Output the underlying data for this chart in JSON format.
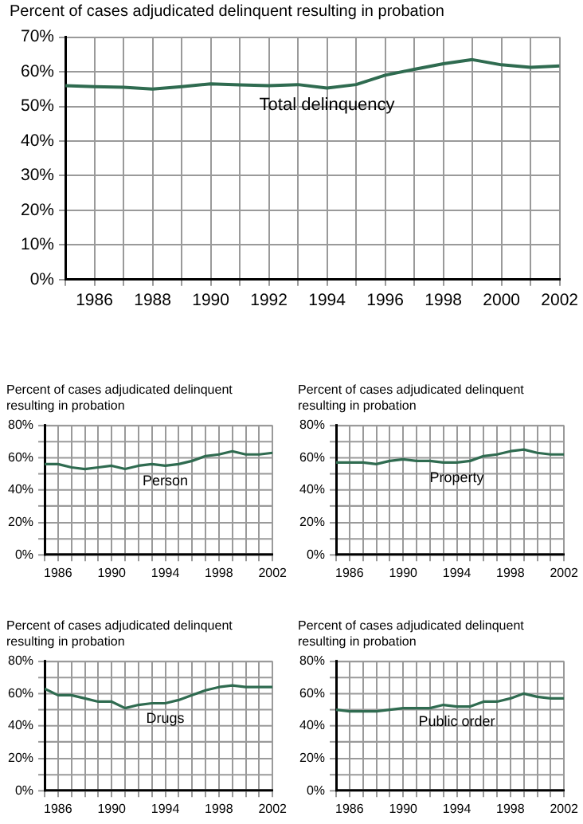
{
  "chart_data": [
    {
      "type": "line",
      "title": "Percent of cases adjudicated delinquent resulting in probation",
      "x": [
        1985,
        1986,
        1987,
        1988,
        1989,
        1990,
        1991,
        1992,
        1993,
        1994,
        1995,
        1996,
        1997,
        1998,
        1999,
        2000,
        2001,
        2002
      ],
      "series": [
        {
          "name": "Total delinquency",
          "color": "#2f6b50",
          "values": [
            56,
            55.7,
            55.5,
            55,
            55.7,
            56.5,
            56.2,
            56,
            56.3,
            55.3,
            56.3,
            59,
            60.7,
            62.3,
            63.5,
            62,
            61.3,
            61.7
          ]
        }
      ],
      "xlim": [
        1985,
        2002
      ],
      "xticks": [
        {
          "value": 1985,
          "label": null
        },
        1986,
        {
          "value": 1987,
          "label": null
        },
        1988,
        {
          "value": 1989,
          "label": null
        },
        1990,
        {
          "value": 1991,
          "label": null
        },
        1992,
        {
          "value": 1993,
          "label": null
        },
        1994,
        {
          "value": 1995,
          "label": null
        },
        1996,
        {
          "value": 1997,
          "label": null
        },
        1998,
        {
          "value": 1999,
          "label": null
        },
        2000,
        {
          "value": 2001,
          "label": null
        },
        2002
      ],
      "ylim": [
        0,
        70
      ],
      "yticks": [
        {
          "value": 0,
          "label": "0%"
        },
        {
          "value": 10,
          "label": "10%"
        },
        {
          "value": 20,
          "label": "20%"
        },
        {
          "value": 30,
          "label": "30%"
        },
        {
          "value": 40,
          "label": "40%"
        },
        {
          "value": 50,
          "label": "50%"
        },
        {
          "value": 60,
          "label": "60%"
        },
        {
          "value": 70,
          "label": "70%"
        }
      ],
      "grid": true,
      "marker": "none",
      "line_style": "solid"
    },
    {
      "type": "line",
      "title": "Percent of cases adjudicated delinquent resulting in probation",
      "x": [
        1985,
        1986,
        1987,
        1988,
        1989,
        1990,
        1991,
        1992,
        1993,
        1994,
        1995,
        1996,
        1997,
        1998,
        1999,
        2000,
        2001,
        2002
      ],
      "series": [
        {
          "name": "Person",
          "color": "#2f6b50",
          "values": [
            56,
            56,
            54,
            53,
            54,
            55,
            53,
            55,
            56,
            55,
            56,
            58,
            61,
            62,
            64,
            62,
            62,
            63
          ]
        }
      ],
      "xlim": [
        1985,
        2002
      ],
      "xticks": [
        {
          "value": 1985,
          "label": null
        },
        1986,
        {
          "value": 1987,
          "label": null
        },
        {
          "value": 1988,
          "label": null
        },
        {
          "value": 1989,
          "label": null
        },
        1990,
        {
          "value": 1991,
          "label": null
        },
        {
          "value": 1992,
          "label": null
        },
        {
          "value": 1993,
          "label": null
        },
        1994,
        {
          "value": 1995,
          "label": null
        },
        {
          "value": 1996,
          "label": null
        },
        {
          "value": 1997,
          "label": null
        },
        1998,
        {
          "value": 1999,
          "label": null
        },
        {
          "value": 2000,
          "label": null
        },
        {
          "value": 2001,
          "label": null
        },
        2002
      ],
      "ylim": [
        0,
        80
      ],
      "yticks": [
        {
          "value": 0,
          "label": "0%"
        },
        {
          "value": 10,
          "label": null
        },
        {
          "value": 20,
          "label": "20%"
        },
        {
          "value": 30,
          "label": null
        },
        {
          "value": 40,
          "label": "40%"
        },
        {
          "value": 50,
          "label": null
        },
        {
          "value": 60,
          "label": "60%"
        },
        {
          "value": 70,
          "label": null
        },
        {
          "value": 80,
          "label": "80%"
        }
      ],
      "grid": true,
      "marker": "none",
      "line_style": "solid"
    },
    {
      "type": "line",
      "title": "Percent of cases adjudicated delinquent resulting in probation",
      "x": [
        1985,
        1986,
        1987,
        1988,
        1989,
        1990,
        1991,
        1992,
        1993,
        1994,
        1995,
        1996,
        1997,
        1998,
        1999,
        2000,
        2001,
        2002
      ],
      "series": [
        {
          "name": "Property",
          "color": "#2f6b50",
          "values": [
            57,
            57,
            57,
            56,
            58,
            59,
            58,
            58,
            57,
            57,
            58,
            61,
            62,
            64,
            65,
            63,
            62,
            62
          ]
        }
      ],
      "xlim": [
        1985,
        2002
      ],
      "xticks": [
        {
          "value": 1985,
          "label": null
        },
        1986,
        {
          "value": 1987,
          "label": null
        },
        {
          "value": 1988,
          "label": null
        },
        {
          "value": 1989,
          "label": null
        },
        1990,
        {
          "value": 1991,
          "label": null
        },
        {
          "value": 1992,
          "label": null
        },
        {
          "value": 1993,
          "label": null
        },
        1994,
        {
          "value": 1995,
          "label": null
        },
        {
          "value": 1996,
          "label": null
        },
        {
          "value": 1997,
          "label": null
        },
        1998,
        {
          "value": 1999,
          "label": null
        },
        {
          "value": 2000,
          "label": null
        },
        {
          "value": 2001,
          "label": null
        },
        2002
      ],
      "ylim": [
        0,
        80
      ],
      "yticks": [
        {
          "value": 0,
          "label": "0%"
        },
        {
          "value": 10,
          "label": null
        },
        {
          "value": 20,
          "label": "20%"
        },
        {
          "value": 30,
          "label": null
        },
        {
          "value": 40,
          "label": "40%"
        },
        {
          "value": 50,
          "label": null
        },
        {
          "value": 60,
          "label": "60%"
        },
        {
          "value": 70,
          "label": null
        },
        {
          "value": 80,
          "label": "80%"
        }
      ],
      "grid": true,
      "marker": "none",
      "line_style": "solid"
    },
    {
      "type": "line",
      "title": "Percent of cases adjudicated delinquent resulting in probation",
      "x": [
        1985,
        1986,
        1987,
        1988,
        1989,
        1990,
        1991,
        1992,
        1993,
        1994,
        1995,
        1996,
        1997,
        1998,
        1999,
        2000,
        2001,
        2002
      ],
      "series": [
        {
          "name": "Drugs",
          "color": "#2f6b50",
          "values": [
            63,
            59,
            59,
            57,
            55,
            55,
            51,
            53,
            54,
            54,
            56,
            59,
            62,
            64,
            65,
            64,
            64,
            64
          ]
        }
      ],
      "xlim": [
        1985,
        2002
      ],
      "xticks": [
        {
          "value": 1985,
          "label": null
        },
        1986,
        {
          "value": 1987,
          "label": null
        },
        {
          "value": 1988,
          "label": null
        },
        {
          "value": 1989,
          "label": null
        },
        1990,
        {
          "value": 1991,
          "label": null
        },
        {
          "value": 1992,
          "label": null
        },
        {
          "value": 1993,
          "label": null
        },
        1994,
        {
          "value": 1995,
          "label": null
        },
        {
          "value": 1996,
          "label": null
        },
        {
          "value": 1997,
          "label": null
        },
        1998,
        {
          "value": 1999,
          "label": null
        },
        {
          "value": 2000,
          "label": null
        },
        {
          "value": 2001,
          "label": null
        },
        2002
      ],
      "ylim": [
        0,
        80
      ],
      "yticks": [
        {
          "value": 0,
          "label": "0%"
        },
        {
          "value": 10,
          "label": null
        },
        {
          "value": 20,
          "label": "20%"
        },
        {
          "value": 30,
          "label": null
        },
        {
          "value": 40,
          "label": "40%"
        },
        {
          "value": 50,
          "label": null
        },
        {
          "value": 60,
          "label": "60%"
        },
        {
          "value": 70,
          "label": null
        },
        {
          "value": 80,
          "label": "80%"
        }
      ],
      "grid": true,
      "marker": "none",
      "line_style": "solid"
    },
    {
      "type": "line",
      "title": "Percent of cases adjudicated delinquent resulting in probation",
      "x": [
        1985,
        1986,
        1987,
        1988,
        1989,
        1990,
        1991,
        1992,
        1993,
        1994,
        1995,
        1996,
        1997,
        1998,
        1999,
        2000,
        2001,
        2002
      ],
      "series": [
        {
          "name": "Public order",
          "color": "#2f6b50",
          "values": [
            50,
            49,
            49,
            49,
            50,
            51,
            51,
            51,
            53,
            52,
            52,
            55,
            55,
            57,
            60,
            58,
            57,
            57
          ]
        }
      ],
      "xlim": [
        1985,
        2002
      ],
      "xticks": [
        {
          "value": 1985,
          "label": null
        },
        1986,
        {
          "value": 1987,
          "label": null
        },
        {
          "value": 1988,
          "label": null
        },
        {
          "value": 1989,
          "label": null
        },
        1990,
        {
          "value": 1991,
          "label": null
        },
        {
          "value": 1992,
          "label": null
        },
        {
          "value": 1993,
          "label": null
        },
        1994,
        {
          "value": 1995,
          "label": null
        },
        {
          "value": 1996,
          "label": null
        },
        {
          "value": 1997,
          "label": null
        },
        1998,
        {
          "value": 1999,
          "label": null
        },
        {
          "value": 2000,
          "label": null
        },
        {
          "value": 2001,
          "label": null
        },
        2002
      ],
      "ylim": [
        0,
        80
      ],
      "yticks": [
        {
          "value": 0,
          "label": "0%"
        },
        {
          "value": 10,
          "label": null
        },
        {
          "value": 20,
          "label": "20%"
        },
        {
          "value": 30,
          "label": null
        },
        {
          "value": 40,
          "label": "40%"
        },
        {
          "value": 50,
          "label": null
        },
        {
          "value": 60,
          "label": "60%"
        },
        {
          "value": 70,
          "label": null
        },
        {
          "value": 80,
          "label": "80%"
        }
      ],
      "grid": true,
      "marker": "none",
      "line_style": "solid"
    }
  ]
}
